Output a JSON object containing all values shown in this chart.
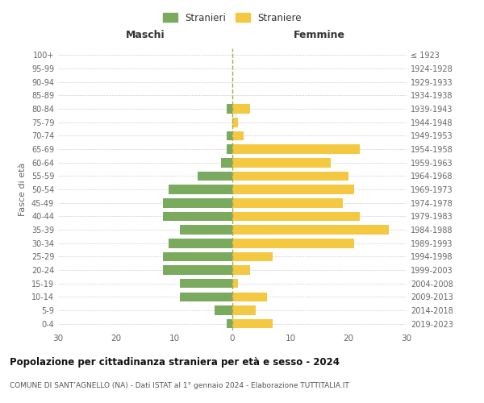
{
  "age_groups": [
    "100+",
    "95-99",
    "90-94",
    "85-89",
    "80-84",
    "75-79",
    "70-74",
    "65-69",
    "60-64",
    "55-59",
    "50-54",
    "45-49",
    "40-44",
    "35-39",
    "30-34",
    "25-29",
    "20-24",
    "15-19",
    "10-14",
    "5-9",
    "0-4"
  ],
  "birth_years": [
    "≤ 1923",
    "1924-1928",
    "1929-1933",
    "1934-1938",
    "1939-1943",
    "1944-1948",
    "1949-1953",
    "1954-1958",
    "1959-1963",
    "1964-1968",
    "1969-1973",
    "1974-1978",
    "1979-1983",
    "1984-1988",
    "1989-1993",
    "1994-1998",
    "1999-2003",
    "2004-2008",
    "2009-2013",
    "2014-2018",
    "2019-2023"
  ],
  "males": [
    0,
    0,
    0,
    0,
    1,
    0,
    1,
    1,
    2,
    6,
    11,
    12,
    12,
    9,
    11,
    12,
    12,
    9,
    9,
    3,
    1
  ],
  "females": [
    0,
    0,
    0,
    0,
    3,
    1,
    2,
    22,
    17,
    20,
    21,
    19,
    22,
    27,
    21,
    7,
    3,
    1,
    6,
    4,
    7
  ],
  "male_color": "#7aaa5e",
  "female_color": "#f5c842",
  "title": "Popolazione per cittadinanza straniera per età e sesso - 2024",
  "subtitle": "COMUNE DI SANT’AGNELLO (NA) - Dati ISTAT al 1° gennaio 2024 - Elaborazione TUTTITALIA.IT",
  "xlabel_left": "Maschi",
  "xlabel_right": "Femmine",
  "ylabel_left": "Fasce di età",
  "legend_male": "Stranieri",
  "legend_female": "Straniere",
  "xlim": 30,
  "background_color": "#ffffff",
  "grid_color": "#d0d0d0"
}
